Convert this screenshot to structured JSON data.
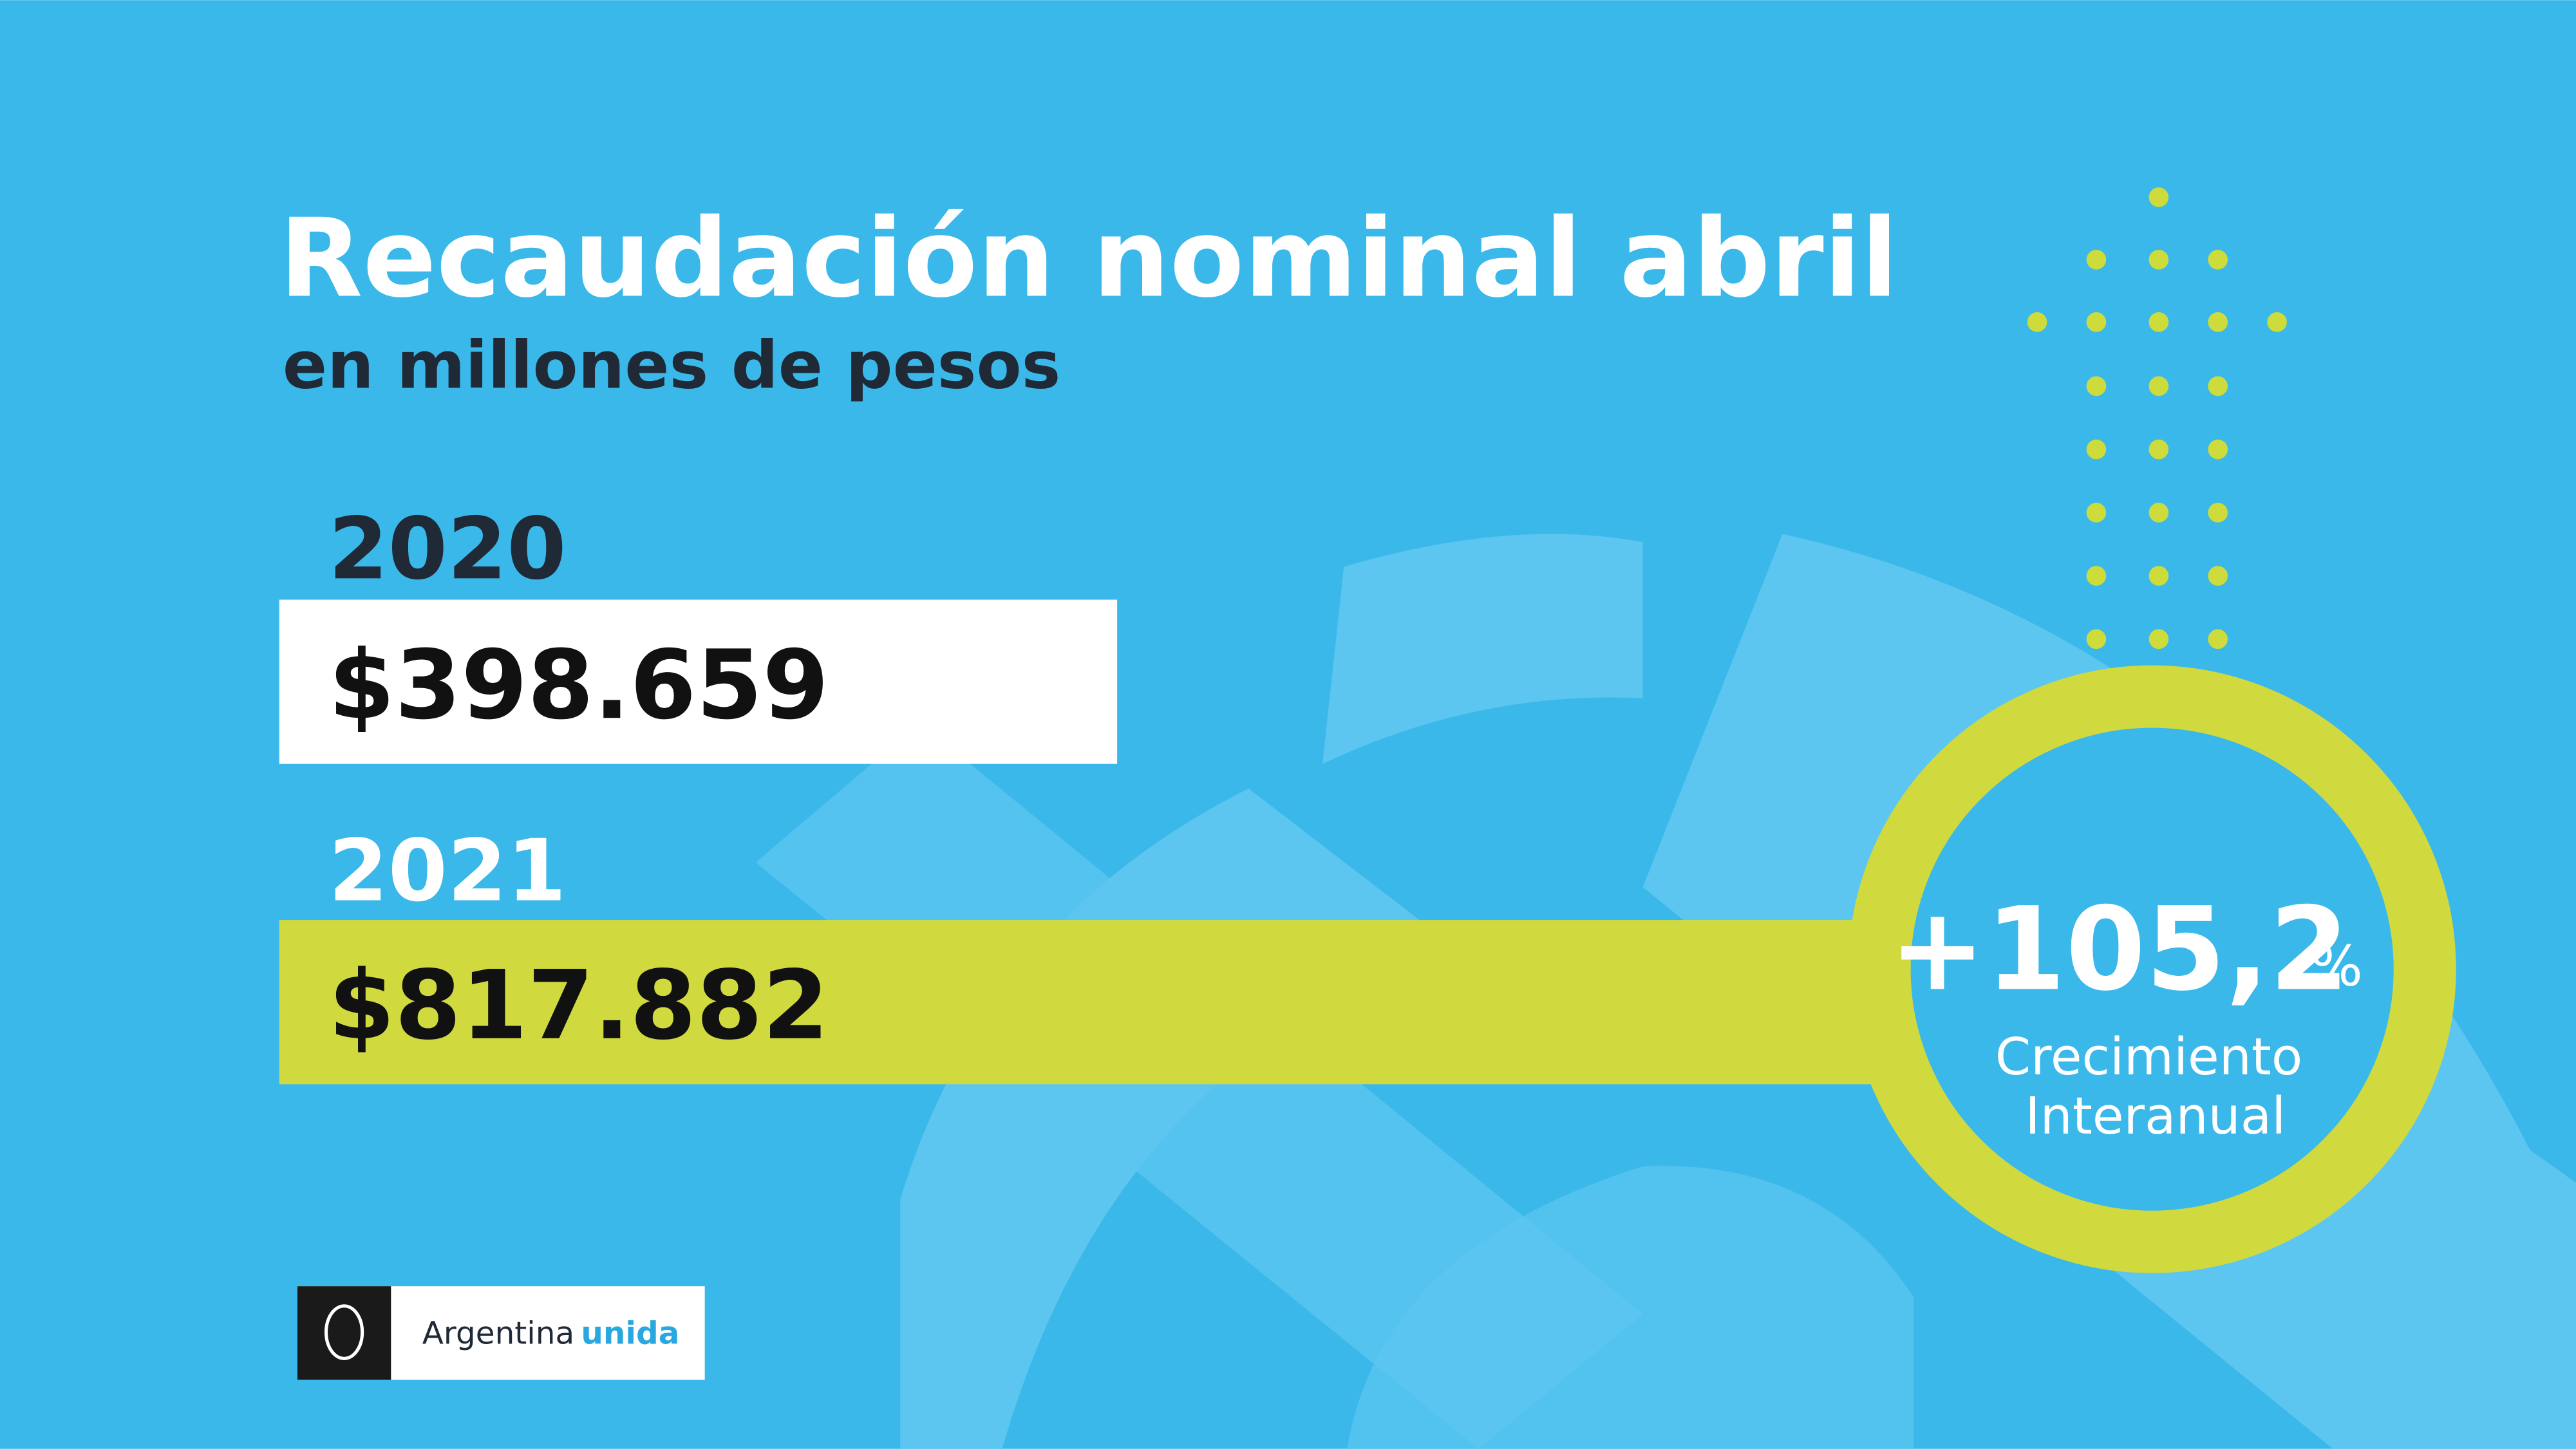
{
  "header": {
    "title": "Recaudación nominal abril",
    "subtitle": "en millones de pesos"
  },
  "items": [
    {
      "year": "2020",
      "amount": "$398.659"
    },
    {
      "year": "2021",
      "amount": "$817.882"
    }
  ],
  "growth": {
    "value": "+105,2",
    "unit": "%",
    "label_line1": "Crecimiento",
    "label_line2": "Interanual"
  },
  "logo": {
    "text1": "Argentina",
    "text2": "unida"
  }
}
